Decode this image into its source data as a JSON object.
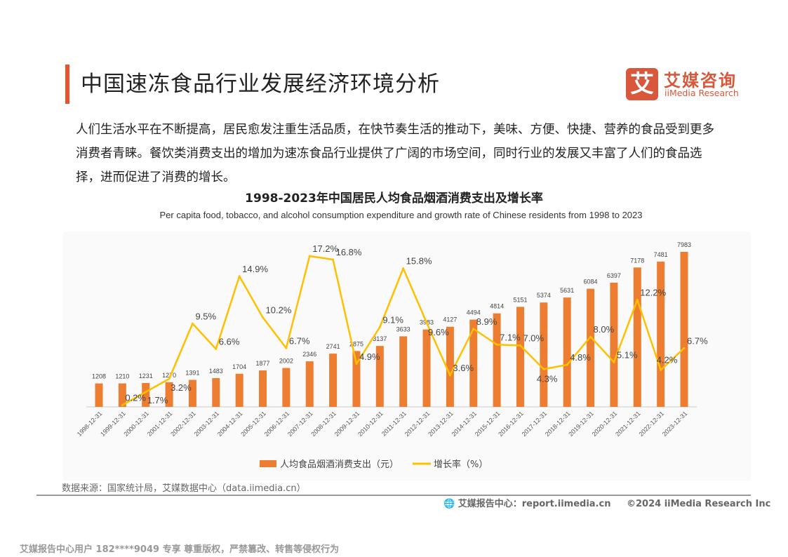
{
  "header": {
    "title": "中国速冻食品行业发展经济环境分析",
    "logo_cn": "艾媒咨询",
    "logo_en": "iiMedia Research",
    "logo_mark": "艾"
  },
  "intro": "人们生活水平在不断提高，居民愈发注重生活品质，在快节奏生活的推动下，美味、方便、快捷、营养的食品受到更多消费者青睐。餐饮类消费支出的增加为速冻食品行业提供了广阔的市场空间，同时行业的发展又丰富了人们的食品选择，进而促进了消费的增长。",
  "chart_data": {
    "type": "bar+line",
    "title": "1998-2023年中国居民人均食品烟酒消费支出及增长率",
    "subtitle": "Per capita food, tobacco, and alcohol consumption expenditure and growth rate of Chinese residents from 1998 to 2023",
    "categories": [
      "1998-12-31",
      "1999-12-31",
      "2000-12-31",
      "2001-12-31",
      "2002-12-31",
      "2003-12-31",
      "2004-12-31",
      "2005-12-31",
      "2006-12-31",
      "2007-12-31",
      "2008-12-31",
      "2009-12-31",
      "2010-12-31",
      "2011-12-31",
      "2012-12-31",
      "2013-12-31",
      "2014-12-31",
      "2015-12-31",
      "2016-12-31",
      "2017-12-31",
      "2018-12-31",
      "2019-12-31",
      "2020-12-31",
      "2021-12-31",
      "2022-12-31",
      "2023-12-31"
    ],
    "series": [
      {
        "name": "人均食品烟酒消费支出（元）",
        "type": "bar",
        "color": "#ED7D31",
        "values": [
          1208,
          1210,
          1231,
          1270,
          1391,
          1483,
          1704,
          1877,
          2002,
          2346,
          2741,
          2875,
          3137,
          3633,
          3983,
          4127,
          4494,
          4814,
          5151,
          5374,
          5631,
          6084,
          6397,
          7178,
          7481,
          7983
        ]
      },
      {
        "name": "增长率（%）",
        "type": "line",
        "color": "#FFC000",
        "values": [
          null,
          0.2,
          1.7,
          3.2,
          9.5,
          6.6,
          14.9,
          10.2,
          6.7,
          17.2,
          16.8,
          4.9,
          9.1,
          15.8,
          9.6,
          3.6,
          8.9,
          7.1,
          7.0,
          4.3,
          4.8,
          8.0,
          5.1,
          12.2,
          4.2,
          6.7
        ]
      }
    ],
    "legend_position": "bottom",
    "grid": false
  },
  "source": "数据来源：国家统计局，艾媒数据中心（data.iimedia.cn）",
  "footer": {
    "site": "艾媒报告中心：report.iimedia.cn",
    "copyright": "©2024  iiMedia Research  Inc"
  },
  "watermark": "艾媒报告中心用户 182****9049 专享 尊重版权，严禁篡改、转售等侵权行为"
}
